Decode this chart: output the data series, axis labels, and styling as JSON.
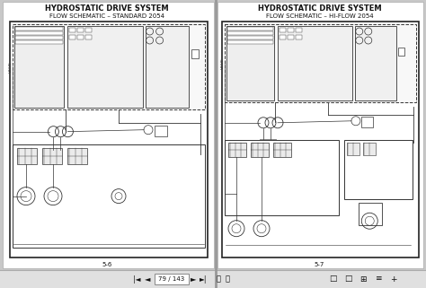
{
  "bg_color": "#c8c8c8",
  "page_bg": "#ffffff",
  "border_color": "#333333",
  "text_color": "#111111",
  "line_color": "#333333",
  "nav_bar_color": "#e0e0e0",
  "nav_bar_border": "#aaaaaa",
  "left_title1": "HYDROSTATIC DRIVE SYSTEM",
  "left_title2": "FLOW SCHEMATIC – STANDARD 2054",
  "right_title1": "HYDROSTATIC DRIVE SYSTEM",
  "right_title2": "FLOW SCHEMATIC – HI-FLOW 2054",
  "left_page_num": "5-6",
  "right_page_num": "5-7",
  "nav_text": "79 / 143",
  "fig_width": 4.74,
  "fig_height": 3.21,
  "dpi": 100
}
